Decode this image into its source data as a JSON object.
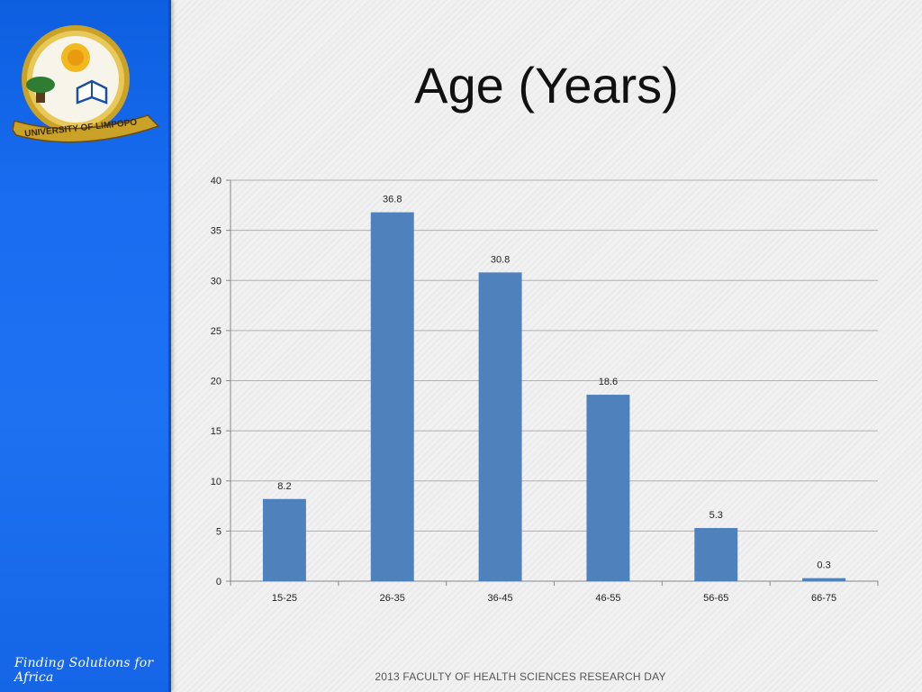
{
  "slide": {
    "title": "Age (Years)",
    "tagline": "Finding Solutions for Africa",
    "footer": "2013 FACULTY OF HEALTH SCIENCES RESEARCH DAY",
    "logo_text": "UNIVERSITY OF LIMPOPO",
    "logo_icon": "university-crest-icon"
  },
  "colors": {
    "sidebar": "#1a6cf0",
    "bar": "#4f81bd",
    "grid": "#b0b0b0"
  },
  "chart_data": {
    "type": "bar",
    "title": "",
    "xlabel": "",
    "ylabel": "",
    "categories": [
      "15-25",
      "26-35",
      "36-45",
      "46-55",
      "56-65",
      "66-75"
    ],
    "values": [
      8.2,
      36.8,
      30.8,
      18.6,
      5.3,
      0.3
    ],
    "data_labels": [
      "8.2",
      "36.8",
      "30.8",
      "18.6",
      "5.3",
      "0.3"
    ],
    "ylim": [
      0,
      40
    ],
    "yticks": [
      0,
      5,
      10,
      15,
      20,
      25,
      30,
      35,
      40
    ],
    "grid": true,
    "legend": "none"
  }
}
